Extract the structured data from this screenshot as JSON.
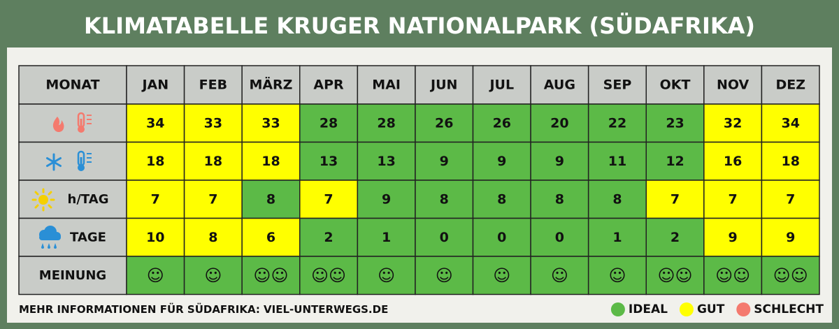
{
  "title": "KLIMATABELLE KRUGER NATIONALPARK (SÜDAFRIKA)",
  "table": {
    "header": [
      "MONAT",
      "JAN",
      "FEB",
      "MÄRZ",
      "APR",
      "MAI",
      "JUN",
      "JUL",
      "AUG",
      "SEP",
      "OKT",
      "NOV",
      "DEZ"
    ],
    "rows": [
      {
        "values": [
          34,
          33,
          33,
          28,
          28,
          26,
          26,
          20,
          22,
          23,
          32,
          34
        ],
        "colors": [
          "#ffff00",
          "#ffff00",
          "#ffff00",
          "#5cba47",
          "#5cba47",
          "#5cba47",
          "#5cba47",
          "#5cba47",
          "#5cba47",
          "#5cba47",
          "#ffff00",
          "#ffff00"
        ]
      },
      {
        "values": [
          18,
          18,
          18,
          13,
          13,
          9,
          9,
          9,
          11,
          12,
          16,
          18
        ],
        "colors": [
          "#ffff00",
          "#ffff00",
          "#ffff00",
          "#5cba47",
          "#5cba47",
          "#5cba47",
          "#5cba47",
          "#5cba47",
          "#5cba47",
          "#5cba47",
          "#ffff00",
          "#ffff00"
        ]
      },
      {
        "label": "h/TAG",
        "values": [
          7,
          7,
          8,
          7,
          9,
          8,
          8,
          8,
          8,
          7,
          7,
          7
        ],
        "colors": [
          "#ffff00",
          "#ffff00",
          "#5cba47",
          "#ffff00",
          "#5cba47",
          "#5cba47",
          "#5cba47",
          "#5cba47",
          "#5cba47",
          "#ffff00",
          "#ffff00",
          "#ffff00"
        ]
      },
      {
        "label": "TAGE",
        "values": [
          10,
          8,
          6,
          2,
          1,
          0,
          0,
          0,
          1,
          2,
          9,
          9
        ],
        "colors": [
          "#ffff00",
          "#ffff00",
          "#ffff00",
          "#5cba47",
          "#5cba47",
          "#5cba47",
          "#5cba47",
          "#5cba47",
          "#5cba47",
          "#5cba47",
          "#ffff00",
          "#ffff00"
        ]
      },
      {
        "label": "MEINUNG",
        "values": [
          "☺",
          "☺",
          "☺☺",
          "☺☺",
          "☺",
          "☺",
          "☺",
          "☺",
          "☺",
          "☺☺",
          "☺☺",
          "☺☺"
        ],
        "colors": [
          "#5cba47",
          "#5cba47",
          "#5cba47",
          "#5cba47",
          "#5cba47",
          "#5cba47",
          "#5cba47",
          "#5cba47",
          "#5cba47",
          "#5cba47",
          "#5cba47",
          "#5cba47"
        ]
      }
    ]
  },
  "footer": "MEHR INFORMATIONEN FÜR SÜDAFRIKA: VIEL-UNTERWEGS.DE",
  "legend": [
    {
      "label": "IDEAL",
      "color": "#5cba47"
    },
    {
      "label": "GUT",
      "color": "#ffff00"
    },
    {
      "label": "SCHLECHT",
      "color": "#f47a6e"
    }
  ]
}
